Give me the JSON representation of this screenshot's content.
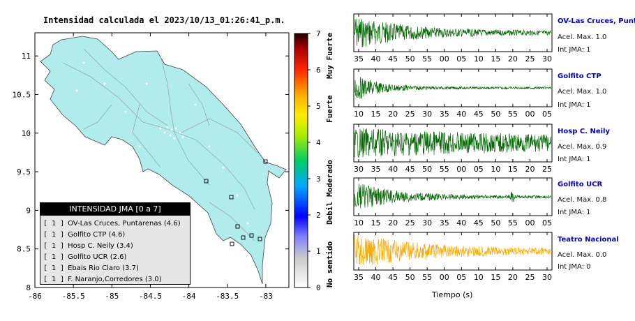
{
  "map": {
    "title": "Intensidad calculada el 2023/10/13_01:26:41_p.m.",
    "x_ticks": [
      "-86",
      "-85.5",
      "-85",
      "-84.5",
      "-84",
      "-83.5",
      "-83"
    ],
    "y_ticks": [
      "11",
      "10.5",
      "10",
      "9.5",
      "9",
      "8.5",
      "8"
    ],
    "lon_range": [
      -86,
      -82.7
    ],
    "lat_range": [
      8,
      11.3
    ],
    "land_color": "#b0ecec",
    "legend": {
      "title": "INTENSIDAD JMA [0 a 7]",
      "rows": [
        {
          "level": "[ 1 ]",
          "label": "OV-Las Cruces, Puntarenas (4.6)"
        },
        {
          "level": "[ 1 ]",
          "label": "Golfito CTP (4.6)"
        },
        {
          "level": "[ 1 ]",
          "label": "Hosp C. Neily (3.4)"
        },
        {
          "level": "[ 1 ]",
          "label": "Golfito UCR (2.6)"
        },
        {
          "level": "[ 1 ]",
          "label": "Ebais Rio Claro (3.7)"
        },
        {
          "level": "[ 1 ]",
          "label": "F. Naranjo,Corredores (3.0)"
        }
      ]
    }
  },
  "colorbar": {
    "ticks": [
      "0",
      "1",
      "2",
      "3",
      "4",
      "5",
      "6",
      "7"
    ],
    "labels": [
      "No sentido",
      "Debil",
      "Moderado",
      "Fuerte",
      "Muy Fuerte"
    ]
  },
  "stations": [
    {
      "name": "OV-Las Cruces, Puntar",
      "acel": "Acel. Max. 1.0",
      "jma": "Int JMA: 1",
      "ticks": [
        "35",
        "40",
        "45",
        "50",
        "55",
        "00",
        "05",
        "10",
        "15",
        "20",
        "25",
        "30"
      ],
      "color": "#006600"
    },
    {
      "name": "Golfito CTP",
      "acel": "Acel. Max. 1.0",
      "jma": "Int JMA: 1",
      "ticks": [
        "10",
        "15",
        "20",
        "25",
        "30",
        "35",
        "40",
        "45",
        "50",
        "55",
        "00",
        "05"
      ],
      "color": "#006600"
    },
    {
      "name": "Hosp C. Neily",
      "acel": "Acel. Max. 0.9",
      "jma": "Int JMA: 1",
      "ticks": [
        "30",
        "35",
        "40",
        "45",
        "50",
        "55",
        "00",
        "05",
        "10",
        "15",
        "20",
        "25"
      ],
      "color": "#006600"
    },
    {
      "name": "Golfito UCR",
      "acel": "Acel. Max. 0.8",
      "jma": "Int JMA: 1",
      "ticks": [
        "10",
        "15",
        "20",
        "25",
        "30",
        "35",
        "40",
        "45",
        "50",
        "55",
        "00",
        "05"
      ],
      "color": "#006600"
    },
    {
      "name": "Teatro Nacional",
      "acel": "Acel. Max. 0.0",
      "jma": "Int JMA: 0",
      "ticks": [
        "35",
        "40",
        "45",
        "50",
        "55",
        "00",
        "05",
        "10",
        "15",
        "20",
        "25",
        "30"
      ],
      "color": "#ffaa00"
    }
  ],
  "xaxis_label": "Tiempo (s)"
}
